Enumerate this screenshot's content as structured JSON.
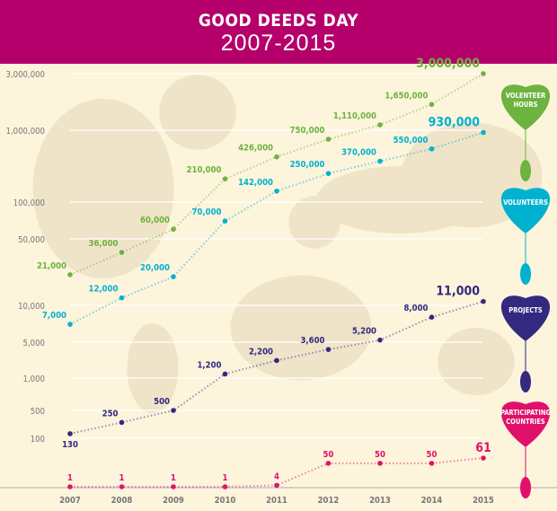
{
  "header": {
    "title": "GOOD DEEDS DAY",
    "subtitle": "2007-2015"
  },
  "chart_data": {
    "type": "line",
    "x": [
      "2007",
      "2008",
      "2009",
      "2010",
      "2011",
      "2012",
      "2013",
      "2014",
      "2015"
    ],
    "y_scale": "log (non-uniform)",
    "y_ticks": [
      "3,000,000",
      "1,000,000",
      "100,000",
      "50,000",
      "10,000",
      "5,000",
      "1,000",
      "500",
      "100"
    ],
    "grid": true,
    "series": [
      {
        "name": "VOLENTEER HOURS",
        "color": "#6db33f",
        "values": [
          21000,
          36000,
          60000,
          210000,
          426000,
          750000,
          1110000,
          1650000,
          3000000
        ],
        "labels": [
          "21,000",
          "36,000",
          "60,000",
          "210,000",
          "426,000",
          "750,000",
          "1,110,000",
          "1,650,000",
          "3,000,000"
        ]
      },
      {
        "name": "VOLUNTEERS",
        "color": "#00b2cf",
        "values": [
          7000,
          12000,
          20000,
          70000,
          142000,
          250000,
          370000,
          550000,
          930000
        ],
        "labels": [
          "7,000",
          "12,000",
          "20,000",
          "70,000",
          "142,000",
          "250,000",
          "370,000",
          "550,000",
          "930,000"
        ]
      },
      {
        "name": "PROJECTS",
        "color": "#33297f",
        "values": [
          130,
          250,
          500,
          1200,
          2200,
          3600,
          5200,
          8000,
          11000
        ],
        "labels": [
          "130",
          "250",
          "500",
          "1,200",
          "2,200",
          "3,600",
          "5,200",
          "8,000",
          "11,000"
        ]
      },
      {
        "name": "PARTICIPATING COUNTRIES",
        "color": "#e0106b",
        "values": [
          1,
          1,
          1,
          1,
          4,
          50,
          50,
          50,
          61
        ],
        "labels": [
          "1",
          "1",
          "1",
          "1",
          "4",
          "50",
          "50",
          "50",
          "61"
        ]
      }
    ]
  }
}
